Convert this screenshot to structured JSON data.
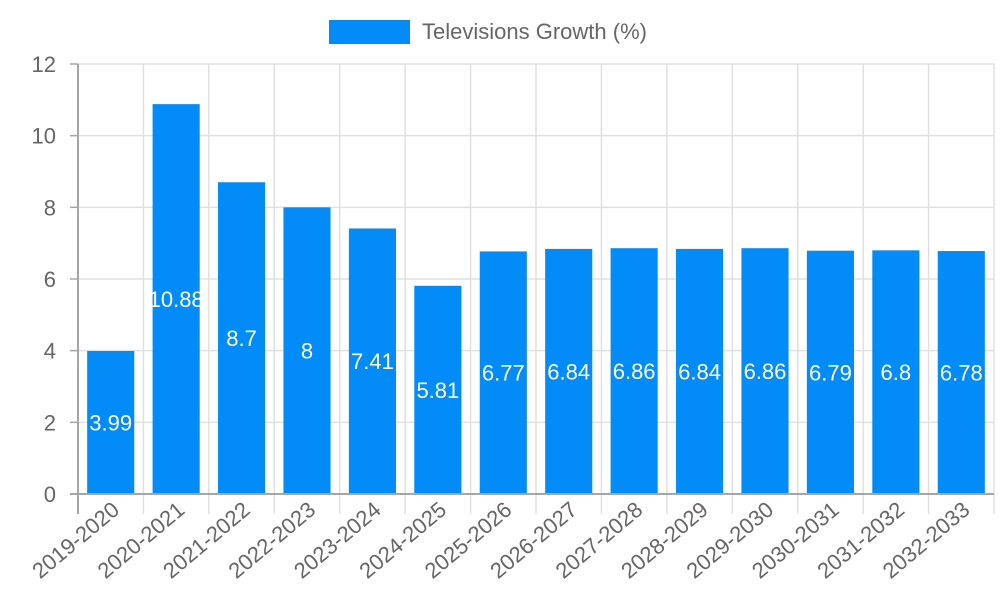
{
  "legend": {
    "label": "Televisions Growth (%)",
    "color": "#038cf8"
  },
  "colors": {
    "bar": "#038cf8",
    "bar_label": "#ffffff",
    "grid": "#e0e0e0",
    "axis": "#a6a6a6",
    "tick_text": "#666666"
  },
  "chart_data": {
    "type": "bar",
    "title": "",
    "xlabel": "",
    "ylabel": "",
    "categories": [
      "2019-2020",
      "2020-2021",
      "2021-2022",
      "2022-2023",
      "2023-2024",
      "2024-2025",
      "2025-2026",
      "2026-2027",
      "2027-2028",
      "2028-2029",
      "2029-2030",
      "2030-2031",
      "2031-2032",
      "2032-2033"
    ],
    "series": [
      {
        "name": "Televisions Growth (%)",
        "values": [
          3.99,
          10.88,
          8.7,
          8,
          7.41,
          5.81,
          6.77,
          6.84,
          6.86,
          6.84,
          6.86,
          6.79,
          6.8,
          6.78
        ]
      }
    ],
    "ylim": [
      0,
      12
    ],
    "yticks": [
      0,
      2,
      4,
      6,
      8,
      10,
      12
    ],
    "grid": true,
    "legend_position": "top",
    "data_labels": true
  }
}
